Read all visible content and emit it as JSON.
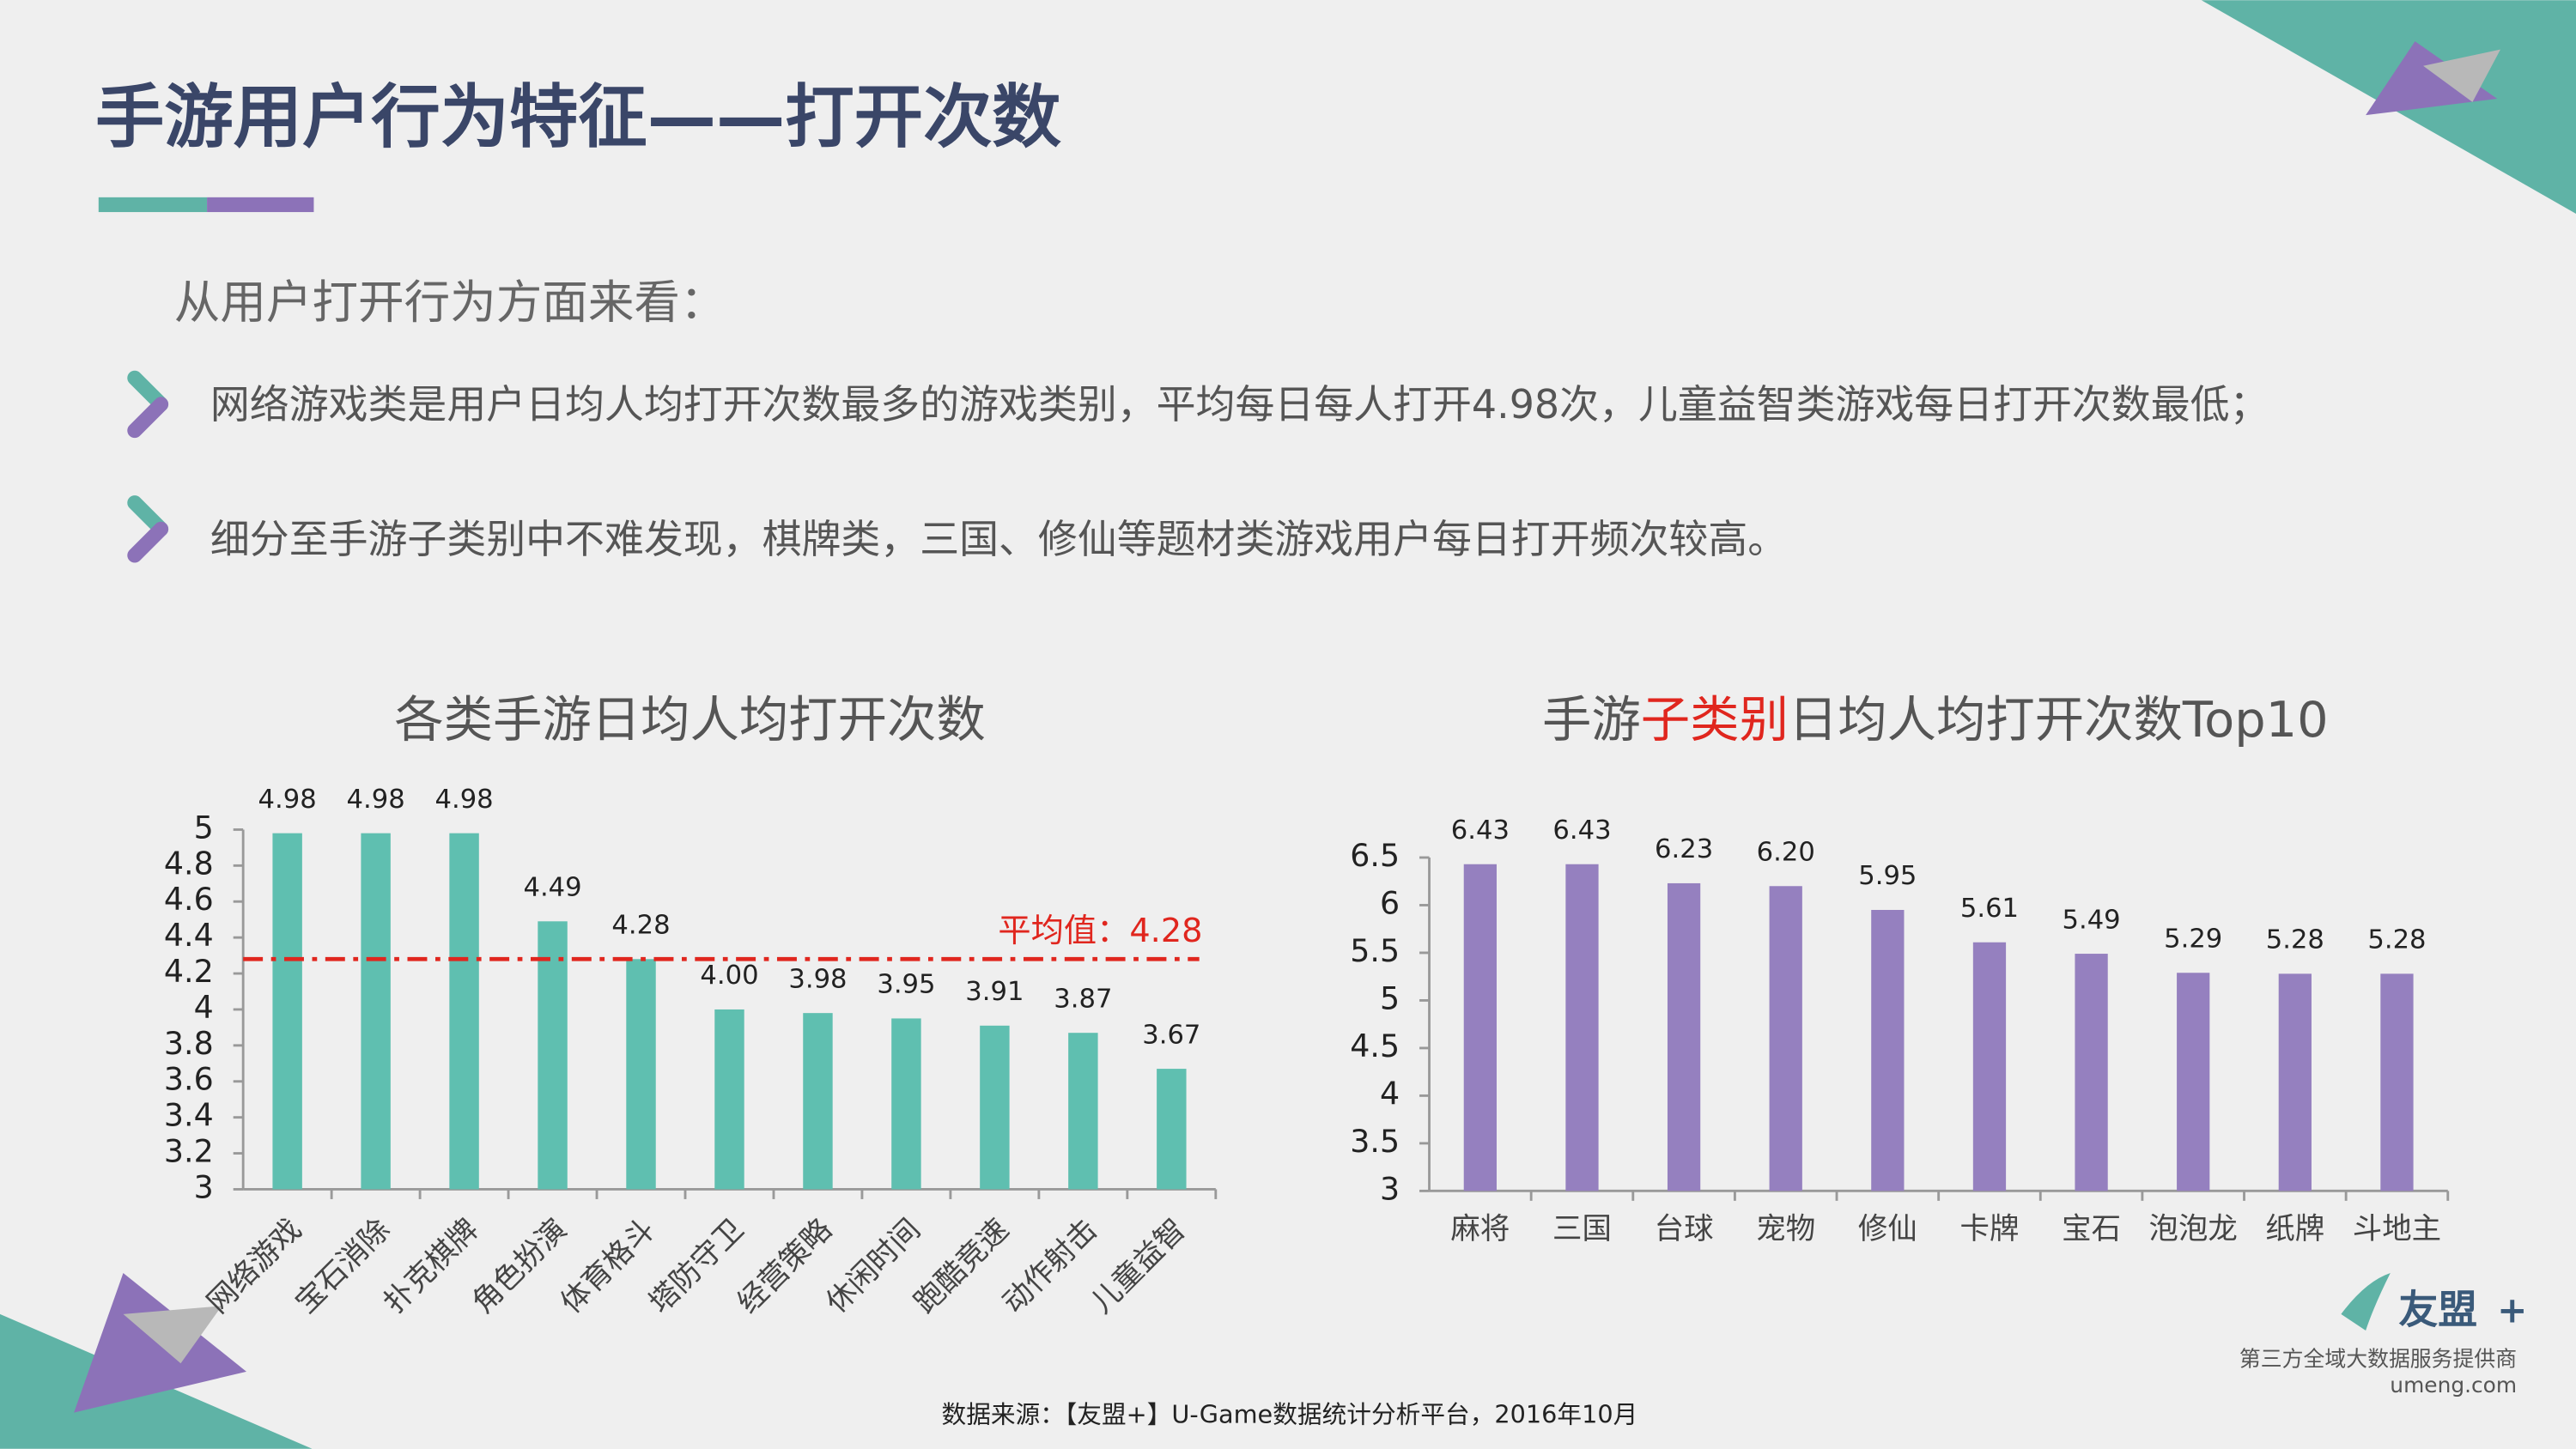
{
  "header": {
    "title": "手游用户行为特征——打开次数"
  },
  "intro": "从用户打开行为方面来看：",
  "bullets": [
    "网络游戏类是用户日均人均打开次数最多的游戏类别，平均每日每人打开4.98次，儿童益智类游戏每日打开次数最低；",
    "细分至手游子类别中不难发现，棋牌类，三国、修仙等题材类游戏用户每日打开频次较高。"
  ],
  "chart_data": [
    {
      "type": "bar",
      "title": [
        "各类手游日均人均打开次数"
      ],
      "categories": [
        "网络游戏",
        "宝石消除",
        "扑克棋牌",
        "角色扮演",
        "体育格斗",
        "塔防守卫",
        "经营策略",
        "休闲时间",
        "跑酷竞速",
        "动作射击",
        "儿童益智"
      ],
      "values": [
        4.98,
        4.98,
        4.98,
        4.49,
        4.28,
        4.0,
        3.98,
        3.95,
        3.91,
        3.87,
        3.67
      ],
      "value_labels": [
        "4.98",
        "4.98",
        "4.98",
        "4.49",
        "4.28",
        "4.00",
        "3.98",
        "3.95",
        "3.91",
        "3.87",
        "3.67"
      ],
      "color": "#5fbfb0",
      "ylim": [
        3,
        5
      ],
      "yticks": [
        3,
        3.2,
        3.4,
        3.6,
        3.8,
        4,
        4.2,
        4.4,
        4.6,
        4.8,
        5
      ],
      "average_line": {
        "value": 4.28,
        "label": "平均值：4.28",
        "color": "#e0261e"
      }
    },
    {
      "type": "bar",
      "title": [
        "手游",
        "子类别",
        "日均人均打开次数Top10"
      ],
      "title_highlight": 1,
      "highlight_color": "#e0261e",
      "categories": [
        "麻将",
        "三国",
        "台球",
        "宠物",
        "修仙",
        "卡牌",
        "宝石",
        "泡泡龙",
        "纸牌",
        "斗地主"
      ],
      "values": [
        6.43,
        6.43,
        6.23,
        6.2,
        5.95,
        5.61,
        5.49,
        5.29,
        5.28,
        5.28
      ],
      "value_labels": [
        "6.43",
        "6.43",
        "6.23",
        "6.20",
        "5.95",
        "5.61",
        "5.49",
        "5.29",
        "5.28",
        "5.28"
      ],
      "color": "#9580bf",
      "ylim": [
        3,
        6.5
      ],
      "yticks": [
        3,
        3.5,
        4,
        4.5,
        5,
        5.5,
        6,
        6.5
      ]
    }
  ],
  "source": "数据来源：【友盟+】U-Game数据统计分析平台，2016年10月",
  "logo": {
    "name": "友盟",
    "plus": "+",
    "tagline": "第三方全域大数据服务提供商",
    "url": "umeng.com"
  }
}
